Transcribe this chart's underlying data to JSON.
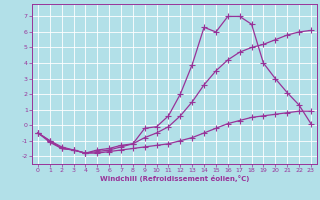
{
  "xlabel": "Windchill (Refroidissement éolien,°C)",
  "ylabel": "",
  "background_color": "#b2e0e8",
  "grid_color": "#ffffff",
  "line_color": "#993399",
  "xlim": [
    -0.5,
    23.5
  ],
  "ylim": [
    -2.5,
    7.8
  ],
  "xticks": [
    0,
    1,
    2,
    3,
    4,
    5,
    6,
    7,
    8,
    9,
    10,
    11,
    12,
    13,
    14,
    15,
    16,
    17,
    18,
    19,
    20,
    21,
    22,
    23
  ],
  "yticks": [
    -2,
    -1,
    0,
    1,
    2,
    3,
    4,
    5,
    6,
    7
  ],
  "line1_x": [
    0,
    1,
    2,
    3,
    4,
    5,
    6,
    7,
    8,
    9,
    10,
    11,
    12,
    13,
    14,
    15,
    16,
    17,
    18,
    19,
    20,
    21,
    22,
    23
  ],
  "line1_y": [
    -0.5,
    -1.1,
    -1.5,
    -1.6,
    -1.8,
    -1.6,
    -1.5,
    -1.3,
    -1.2,
    -0.2,
    -0.1,
    0.6,
    2.0,
    3.9,
    6.3,
    6.0,
    7.0,
    7.0,
    6.5,
    4.0,
    3.0,
    2.1,
    1.3,
    0.1
  ],
  "line2_x": [
    0,
    1,
    2,
    3,
    4,
    5,
    6,
    7,
    8,
    9,
    10,
    11,
    12,
    13,
    14,
    15,
    16,
    17,
    18,
    19,
    20,
    21,
    22,
    23
  ],
  "line2_y": [
    -0.5,
    -1.0,
    -1.5,
    -1.6,
    -1.8,
    -1.7,
    -1.6,
    -1.4,
    -1.2,
    -0.8,
    -0.5,
    -0.1,
    0.6,
    1.5,
    2.6,
    3.5,
    4.2,
    4.7,
    5.0,
    5.2,
    5.5,
    5.8,
    6.0,
    6.1
  ],
  "line3_x": [
    0,
    1,
    2,
    3,
    4,
    5,
    6,
    7,
    8,
    9,
    10,
    11,
    12,
    13,
    14,
    15,
    16,
    17,
    18,
    19,
    20,
    21,
    22,
    23
  ],
  "line3_y": [
    -0.5,
    -1.0,
    -1.4,
    -1.6,
    -1.8,
    -1.8,
    -1.7,
    -1.6,
    -1.5,
    -1.4,
    -1.3,
    -1.2,
    -1.0,
    -0.8,
    -0.5,
    -0.2,
    0.1,
    0.3,
    0.5,
    0.6,
    0.7,
    0.8,
    0.9,
    0.9
  ]
}
